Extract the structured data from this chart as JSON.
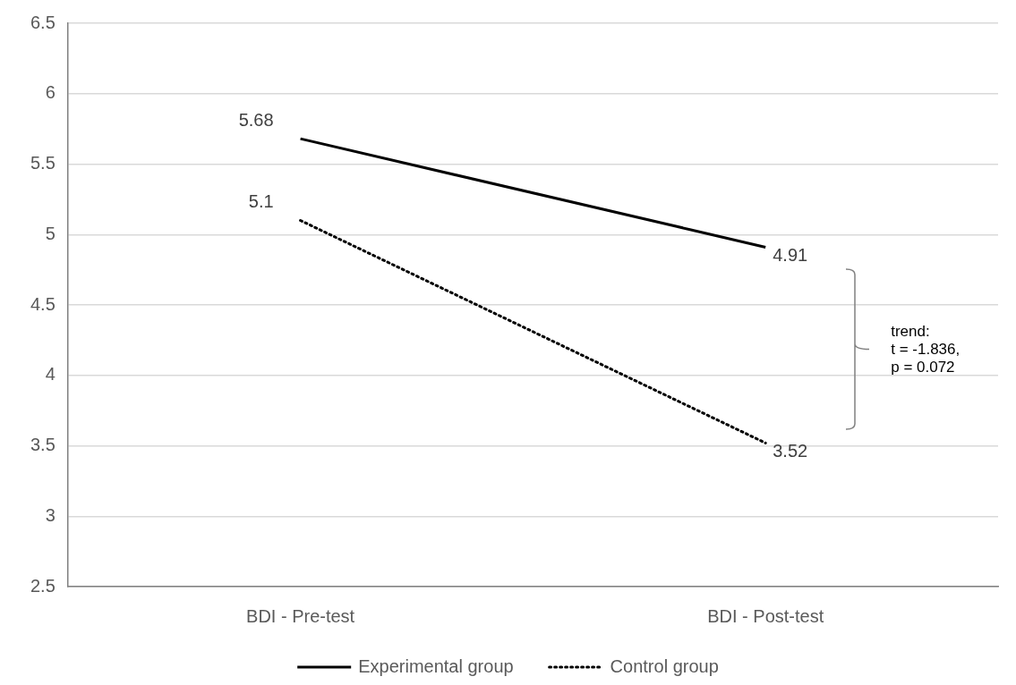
{
  "chart_data": {
    "type": "line",
    "categories": [
      "BDI - Pre-test",
      "BDI - Post-test"
    ],
    "series": [
      {
        "name": "Experimental group",
        "color": "#000000",
        "values": [
          5.68,
          4.91
        ],
        "line_style": "solid"
      },
      {
        "name": "Control group",
        "color": "#000000",
        "values": [
          5.1,
          3.52
        ],
        "line_style": "dotted"
      }
    ],
    "ylim": [
      2.5,
      6.5
    ],
    "yticks": [
      2.5,
      3,
      3.5,
      4,
      4.5,
      5,
      5.5,
      6,
      6.5
    ],
    "grid": "y",
    "legend": "bottom",
    "marker": "none",
    "data_labels": true,
    "annotations": [
      "trend:\nt = -1.836,\np = 0.072"
    ]
  }
}
